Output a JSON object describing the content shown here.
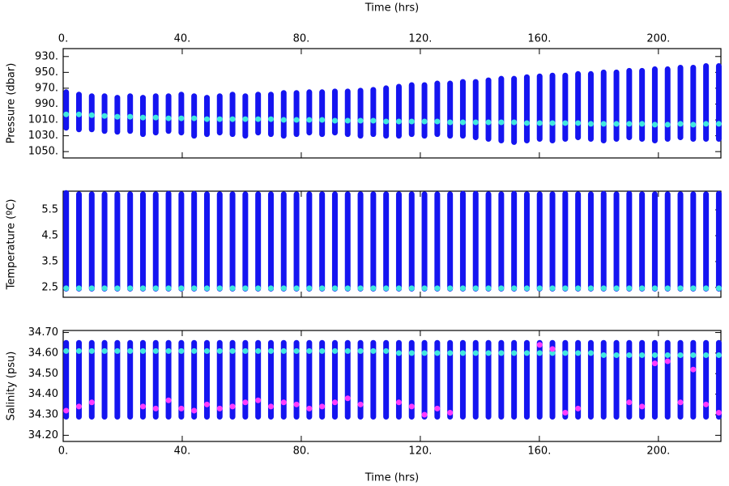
{
  "chart_data": [
    {
      "type": "range",
      "xlabel": "Time (hrs)",
      "xlabel_position": "top",
      "ylabel": "Pressure (dbar)",
      "inverted": true,
      "xlim": [
        0,
        221
      ],
      "xticks": [
        {
          "value": 0,
          "label": "0."
        },
        {
          "value": 40,
          "label": "40."
        },
        {
          "value": 80,
          "label": "80."
        },
        {
          "value": 120,
          "label": "120."
        },
        {
          "value": 160,
          "label": "160."
        },
        {
          "value": 200,
          "label": "200."
        }
      ],
      "ylim": [
        920,
        1058
      ],
      "yticks": [
        {
          "value": 930,
          "label": "930."
        },
        {
          "value": 950,
          "label": "950."
        },
        {
          "value": 970,
          "label": "970."
        },
        {
          "value": 990,
          "label": "990."
        },
        {
          "value": 1010,
          "label": "1010."
        },
        {
          "value": 1030,
          "label": "1030."
        },
        {
          "value": 1050,
          "label": "1050."
        }
      ],
      "color": "#1414f0",
      "x": [
        1,
        5.3,
        9.6,
        13.9,
        18.2,
        22.5,
        26.8,
        31.1,
        35.4,
        39.7,
        44,
        48.3,
        52.6,
        56.9,
        61.2,
        65.5,
        69.8,
        74.1,
        78.4,
        82.7,
        87,
        91.3,
        95.6,
        99.9,
        104.2,
        108.5,
        112.8,
        117.1,
        121.4,
        125.7,
        130,
        134.3,
        138.6,
        142.9,
        147.2,
        151.5,
        155.8,
        160.1,
        164.4,
        168.7,
        173,
        177.3,
        181.6,
        185.9,
        190.2,
        194.5,
        198.8,
        203.1,
        207.4,
        211.7,
        216,
        220.3
      ],
      "low": [
        975,
        978,
        980,
        980,
        982,
        980,
        982,
        980,
        980,
        978,
        980,
        982,
        980,
        978,
        980,
        978,
        978,
        976,
        976,
        975,
        975,
        974,
        974,
        973,
        972,
        970,
        968,
        966,
        966,
        964,
        964,
        962,
        962,
        960,
        958,
        958,
        956,
        955,
        954,
        954,
        952,
        952,
        950,
        950,
        948,
        948,
        946,
        946,
        944,
        944,
        942,
        942
      ],
      "high": [
        1020,
        1022,
        1022,
        1024,
        1025,
        1024,
        1028,
        1026,
        1024,
        1026,
        1030,
        1028,
        1026,
        1028,
        1030,
        1026,
        1028,
        1030,
        1028,
        1026,
        1028,
        1026,
        1028,
        1030,
        1028,
        1030,
        1030,
        1028,
        1030,
        1028,
        1030,
        1030,
        1032,
        1034,
        1036,
        1038,
        1036,
        1034,
        1036,
        1034,
        1032,
        1034,
        1036,
        1034,
        1032,
        1034,
        1036,
        1034,
        1032,
        1034,
        1034,
        1034
      ],
      "mean": {
        "color": "#40e8e0",
        "values": [
          1003,
          1003,
          1004,
          1005,
          1006,
          1006,
          1007,
          1007,
          1008,
          1008,
          1008,
          1009,
          1009,
          1009,
          1009,
          1009,
          1009,
          1010,
          1010,
          1010,
          1010,
          1011,
          1011,
          1011,
          1011,
          1012,
          1012,
          1012,
          1012,
          1012,
          1013,
          1013,
          1013,
          1013,
          1013,
          1013,
          1014,
          1014,
          1014,
          1014,
          1014,
          1015,
          1015,
          1015,
          1015,
          1015,
          1016,
          1016,
          1015,
          1016,
          1015,
          1015
        ]
      }
    },
    {
      "type": "range",
      "ylabel": "Temperature (ºC)",
      "xlim": [
        0,
        221
      ],
      "xticks": [
        0,
        40,
        80,
        120,
        160,
        200
      ],
      "ylim": [
        2.12,
        6.22
      ],
      "yticks": [
        2.5,
        3.5,
        4.5,
        5.5
      ],
      "color": "#1414f0",
      "x": [
        1,
        5.3,
        9.6,
        13.9,
        18.2,
        22.5,
        26.8,
        31.1,
        35.4,
        39.7,
        44,
        48.3,
        52.6,
        56.9,
        61.2,
        65.5,
        69.8,
        74.1,
        78.4,
        82.7,
        87,
        91.3,
        95.6,
        99.9,
        104.2,
        108.5,
        112.8,
        117.1,
        121.4,
        125.7,
        130,
        134.3,
        138.6,
        142.9,
        147.2,
        151.5,
        155.8,
        160.1,
        164.4,
        168.7,
        173,
        177.3,
        181.6,
        185.9,
        190.2,
        194.5,
        198.8,
        203.1,
        207.4,
        211.7,
        216,
        220.3
      ],
      "low": [
        2.45,
        2.45,
        2.45,
        2.45,
        2.45,
        2.45,
        2.45,
        2.45,
        2.45,
        2.45,
        2.45,
        2.45,
        2.45,
        2.45,
        2.45,
        2.45,
        2.45,
        2.45,
        2.45,
        2.45,
        2.45,
        2.45,
        2.45,
        2.45,
        2.45,
        2.45,
        2.45,
        2.45,
        2.45,
        2.45,
        2.45,
        2.45,
        2.45,
        2.45,
        2.45,
        2.45,
        2.45,
        2.45,
        2.45,
        2.45,
        2.45,
        2.45,
        2.45,
        2.45,
        2.45,
        2.45,
        2.45,
        2.45,
        2.45,
        2.45,
        2.45,
        2.45
      ],
      "high": [
        6.15,
        6.1,
        6.1,
        6.1,
        6.1,
        6.1,
        6.1,
        6.1,
        6.12,
        6.1,
        6.12,
        6.1,
        6.1,
        6.1,
        6.1,
        6.1,
        6.1,
        6.1,
        6.1,
        6.1,
        6.1,
        6.1,
        6.1,
        6.1,
        6.1,
        6.1,
        6.1,
        6.1,
        6.1,
        6.1,
        6.1,
        6.12,
        6.12,
        6.1,
        6.1,
        6.12,
        6.1,
        6.1,
        6.1,
        6.12,
        6.1,
        6.1,
        6.12,
        6.1,
        6.12,
        6.1,
        6.1,
        6.1,
        6.1,
        6.1,
        6.1,
        6.12
      ],
      "mean": {
        "color": "#40e8e0",
        "values": [
          2.47,
          2.47,
          2.47,
          2.47,
          2.47,
          2.47,
          2.47,
          2.47,
          2.47,
          2.47,
          2.47,
          2.47,
          2.47,
          2.47,
          2.47,
          2.47,
          2.47,
          2.47,
          2.47,
          2.47,
          2.47,
          2.47,
          2.47,
          2.47,
          2.47,
          2.47,
          2.47,
          2.47,
          2.47,
          2.47,
          2.47,
          2.47,
          2.47,
          2.47,
          2.47,
          2.47,
          2.47,
          2.47,
          2.47,
          2.47,
          2.47,
          2.47,
          2.47,
          2.47,
          2.47,
          2.47,
          2.47,
          2.47,
          2.47,
          2.47,
          2.47,
          2.47
        ]
      }
    },
    {
      "type": "range",
      "xlabel": "Time (hrs)",
      "xlabel_position": "bottom",
      "ylabel": "Salinity (psu)",
      "xlim": [
        0,
        221
      ],
      "xticks": [
        {
          "value": 0,
          "label": "0."
        },
        {
          "value": 40,
          "label": "40."
        },
        {
          "value": 80,
          "label": "80."
        },
        {
          "value": 120,
          "label": "120."
        },
        {
          "value": 160,
          "label": "160."
        },
        {
          "value": 200,
          "label": "200."
        }
      ],
      "ylim": [
        34.17,
        34.71
      ],
      "yticks": [
        {
          "value": 34.2,
          "label": "34.20"
        },
        {
          "value": 34.3,
          "label": "34.30"
        },
        {
          "value": 34.4,
          "label": "34.40"
        },
        {
          "value": 34.5,
          "label": "34.50"
        },
        {
          "value": 34.6,
          "label": "34.60"
        },
        {
          "value": 34.7,
          "label": "34.70"
        }
      ],
      "color": "#1414f0",
      "x": [
        1,
        5.3,
        9.6,
        13.9,
        18.2,
        22.5,
        26.8,
        31.1,
        35.4,
        39.7,
        44,
        48.3,
        52.6,
        56.9,
        61.2,
        65.5,
        69.8,
        74.1,
        78.4,
        82.7,
        87,
        91.3,
        95.6,
        99.9,
        104.2,
        108.5,
        112.8,
        117.1,
        121.4,
        125.7,
        130,
        134.3,
        138.6,
        142.9,
        147.2,
        151.5,
        155.8,
        160.1,
        164.4,
        168.7,
        173,
        177.3,
        181.6,
        185.9,
        190.2,
        194.5,
        198.8,
        203.1,
        207.4,
        211.7,
        216,
        220.3
      ],
      "low": [
        34.29,
        34.29,
        34.29,
        34.29,
        34.29,
        34.29,
        34.29,
        34.29,
        34.29,
        34.29,
        34.29,
        34.29,
        34.29,
        34.29,
        34.29,
        34.29,
        34.29,
        34.29,
        34.29,
        34.29,
        34.29,
        34.29,
        34.29,
        34.29,
        34.29,
        34.29,
        34.29,
        34.29,
        34.29,
        34.29,
        34.29,
        34.29,
        34.29,
        34.29,
        34.29,
        34.29,
        34.29,
        34.29,
        34.29,
        34.29,
        34.29,
        34.29,
        34.29,
        34.29,
        34.29,
        34.29,
        34.29,
        34.29,
        34.29,
        34.29,
        34.29,
        34.29
      ],
      "high": [
        34.65,
        34.65,
        34.65,
        34.65,
        34.65,
        34.65,
        34.65,
        34.65,
        34.65,
        34.65,
        34.65,
        34.65,
        34.65,
        34.65,
        34.65,
        34.65,
        34.65,
        34.65,
        34.65,
        34.65,
        34.65,
        34.65,
        34.65,
        34.65,
        34.65,
        34.65,
        34.65,
        34.65,
        34.65,
        34.65,
        34.65,
        34.65,
        34.65,
        34.65,
        34.65,
        34.65,
        34.65,
        34.65,
        34.65,
        34.65,
        34.65,
        34.65,
        34.65,
        34.65,
        34.65,
        34.65,
        34.65,
        34.65,
        34.65,
        34.65,
        34.65,
        34.65
      ],
      "mean": {
        "color": "#40e8e0",
        "values": [
          34.61,
          34.61,
          34.61,
          34.61,
          34.61,
          34.61,
          34.61,
          34.61,
          34.61,
          34.61,
          34.61,
          34.61,
          34.61,
          34.61,
          34.61,
          34.61,
          34.61,
          34.61,
          34.61,
          34.61,
          34.61,
          34.61,
          34.61,
          34.61,
          34.61,
          34.61,
          34.6,
          34.6,
          34.6,
          34.6,
          34.6,
          34.6,
          34.6,
          34.6,
          34.6,
          34.6,
          34.6,
          34.6,
          34.6,
          34.6,
          34.6,
          34.6,
          34.59,
          34.59,
          34.59,
          34.59,
          34.59,
          34.59,
          34.59,
          34.59,
          34.59,
          34.59
        ]
      },
      "extra": {
        "color": "#ff3cff",
        "values": [
          34.32,
          34.34,
          34.36,
          null,
          null,
          null,
          34.34,
          34.33,
          34.37,
          34.33,
          34.32,
          34.35,
          34.33,
          34.34,
          34.36,
          34.37,
          34.34,
          34.36,
          34.35,
          34.33,
          34.34,
          34.36,
          34.38,
          34.35,
          null,
          null,
          34.36,
          34.34,
          34.3,
          34.33,
          34.31,
          null,
          null,
          null,
          null,
          null,
          null,
          34.64,
          34.62,
          34.31,
          34.33,
          null,
          null,
          null,
          34.36,
          34.34,
          34.55,
          34.56,
          34.36,
          34.52,
          34.35,
          34.31
        ]
      }
    }
  ]
}
